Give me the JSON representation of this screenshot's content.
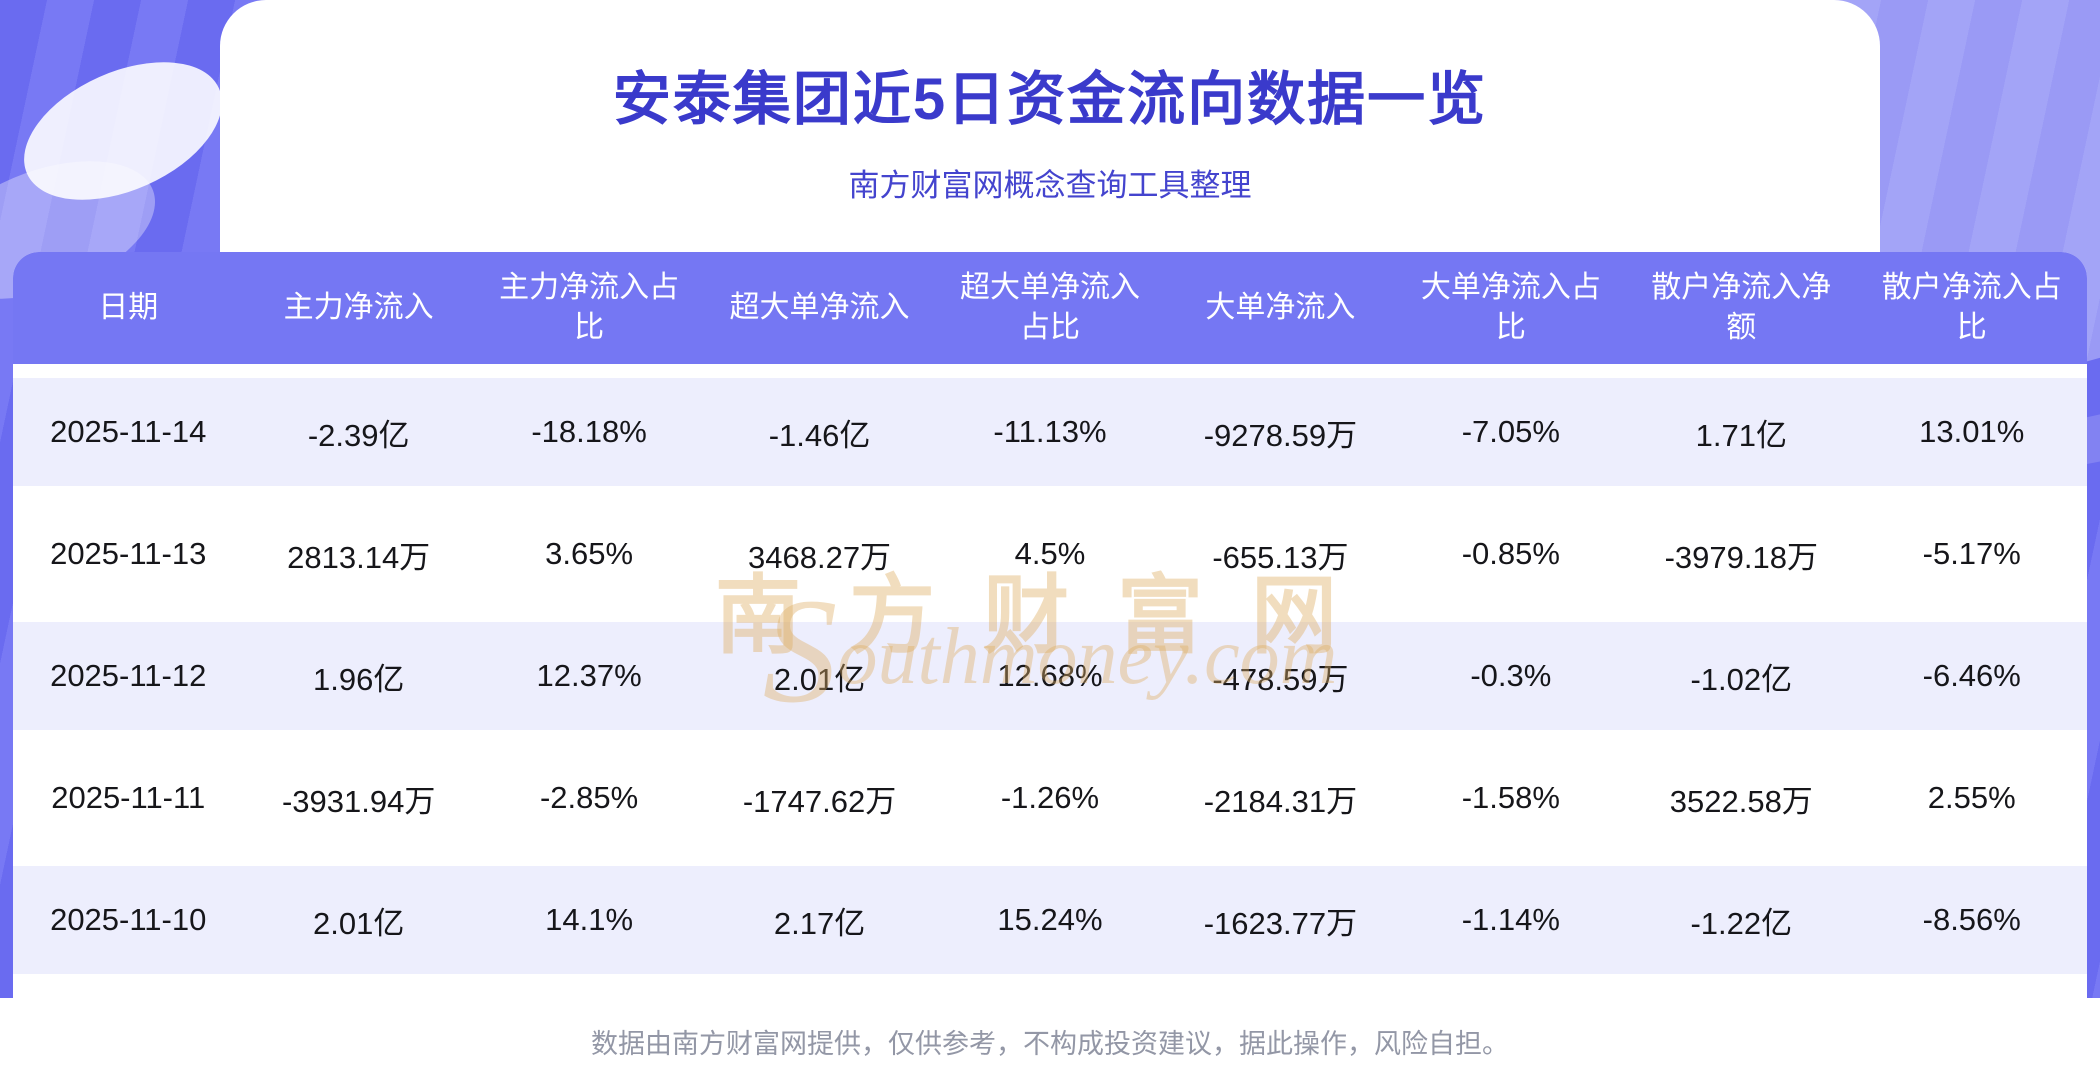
{
  "header": {
    "title": "安泰集团近5日资金流向数据一览",
    "subtitle": "南方财富网概念查询工具整理"
  },
  "watermark": {
    "cn": "南方财富网",
    "initial": "S",
    "en": "outhmoney.com"
  },
  "footer": {
    "disclaimer": "数据由南方财富网提供，仅供参考，不构成投资建议，据此操作，风险自担。"
  },
  "colors": {
    "banner": "#6A6BF0",
    "banner_stripe": "#7879F4",
    "header_bg": "#7577F3",
    "header_text": "#FFFFFF",
    "row_alt": "#EDEEFD",
    "title": "#3A3ACB",
    "subtitle": "#4444CE",
    "cell_text": "#16161A",
    "footer_text": "#9397A6",
    "watermark": "#DFAF65"
  },
  "chart_data": {
    "type": "table",
    "title": "安泰集团近5日资金流向数据一览",
    "columns": [
      "日期",
      "主力净流入",
      "主力净流入占比",
      "超大单净流入",
      "超大单净流入占比",
      "大单净流入",
      "大单净流入占比",
      "散户净流入净额",
      "散户净流入占比"
    ],
    "rows": [
      [
        "2025-11-14",
        "-2.39亿",
        "-18.18%",
        "-1.46亿",
        "-11.13%",
        "-9278.59万",
        "-7.05%",
        "1.71亿",
        "13.01%"
      ],
      [
        "2025-11-13",
        "2813.14万",
        "3.65%",
        "3468.27万",
        "4.5%",
        "-655.13万",
        "-0.85%",
        "-3979.18万",
        "-5.17%"
      ],
      [
        "2025-11-12",
        "1.96亿",
        "12.37%",
        "2.01亿",
        "12.68%",
        "-478.59万",
        "-0.3%",
        "-1.02亿",
        "-6.46%"
      ],
      [
        "2025-11-11",
        "-3931.94万",
        "-2.85%",
        "-1747.62万",
        "-1.26%",
        "-2184.31万",
        "-1.58%",
        "3522.58万",
        "2.55%"
      ],
      [
        "2025-11-10",
        "2.01亿",
        "14.1%",
        "2.17亿",
        "15.24%",
        "-1623.77万",
        "-1.14%",
        "-1.22亿",
        "-8.56%"
      ]
    ]
  }
}
